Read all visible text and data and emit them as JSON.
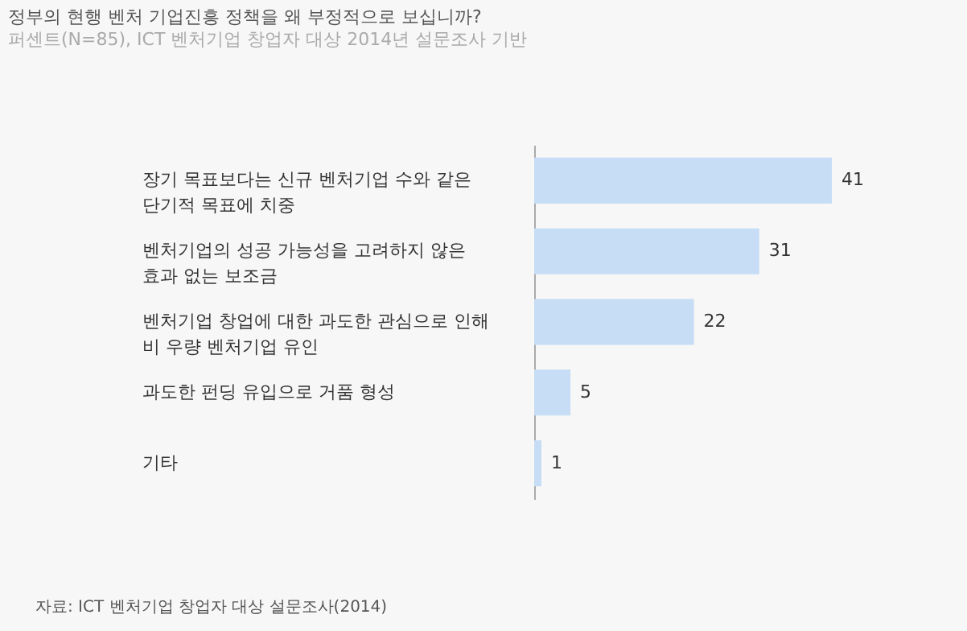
{
  "chart_data": {
    "type": "bar",
    "orientation": "horizontal",
    "title": "정부의 현행 벤처 기업진흥 정책을 왜 부정적으로 보십니까?",
    "subtitle": "퍼센트(N=85), ICT 벤처기업 창업자 대상 2014년 설문조사 기반",
    "categories": [
      "장기 목표보다는 신규 벤처기업 수와 같은\n단기적 목표에 치중",
      "벤처기업의 성공 가능성을 고려하지 않은\n효과 없는 보조금",
      "벤처기업 창업에 대한 과도한 관심으로 인해\n비 우량 벤처기업 유인",
      "과도한 펀딩 유입으로 거품 형성",
      "기타"
    ],
    "values": [
      41,
      31,
      22,
      5,
      1
    ],
    "color": "#c6ddf5",
    "data_labels": true,
    "annotations": [
      "자료: ICT 벤처기업 창업자 대상 설문조사(2014)"
    ]
  }
}
